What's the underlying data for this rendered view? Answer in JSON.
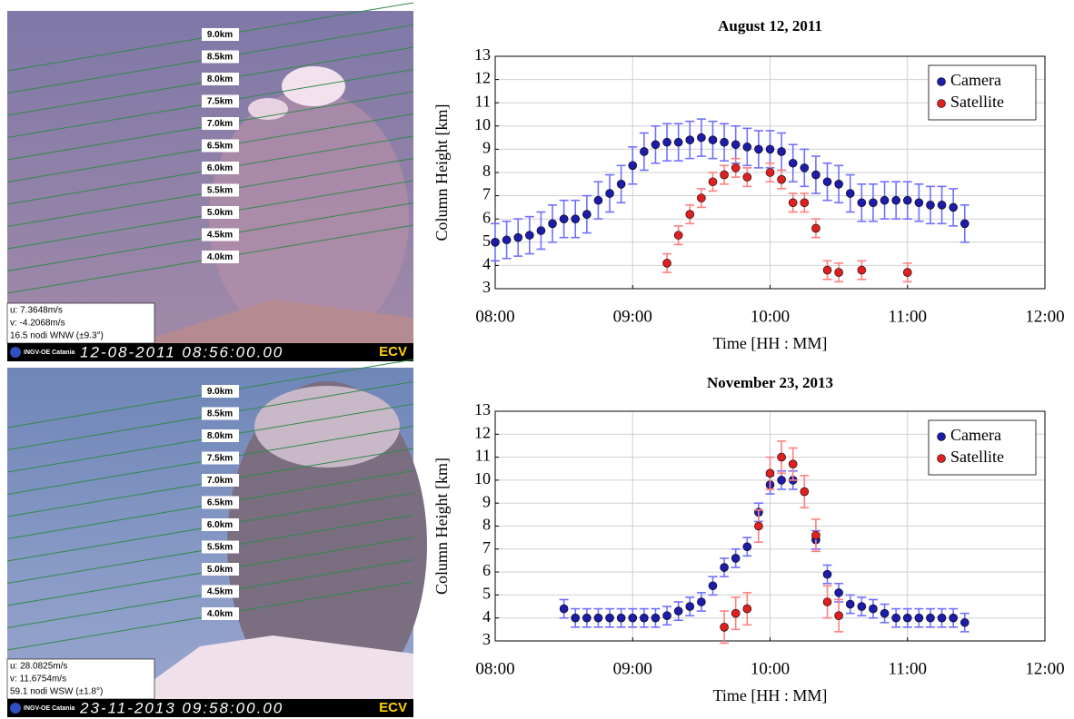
{
  "chart_data": [
    {
      "type": "scatter",
      "title": "August 12, 2011",
      "xlabel": "Time [HH : MM]",
      "ylabel": "Column Height [km]",
      "xlim": [
        480,
        720
      ],
      "xticks": [
        {
          "value": 480,
          "label": "08:00"
        },
        {
          "value": 540,
          "label": "09:00"
        },
        {
          "value": 600,
          "label": "10:00"
        },
        {
          "value": 660,
          "label": "11:00"
        },
        {
          "value": 720,
          "label": "12:00"
        }
      ],
      "ylim": [
        3,
        13
      ],
      "yticks": [
        3,
        4,
        5,
        6,
        7,
        8,
        9,
        10,
        11,
        12,
        13
      ],
      "grid": true,
      "legend": "upper right",
      "series": [
        {
          "name": "Camera",
          "color": "#1c1ca8",
          "error_color": "#7070ff",
          "error": 0.8,
          "x": [
            480,
            485,
            490,
            495,
            500,
            505,
            510,
            515,
            520,
            525,
            530,
            535,
            540,
            545,
            550,
            555,
            560,
            565,
            570,
            575,
            580,
            585,
            590,
            595,
            600,
            605,
            610,
            615,
            620,
            625,
            630,
            635,
            640,
            645,
            650,
            655,
            660,
            665,
            670,
            675,
            680,
            685
          ],
          "values": [
            5.0,
            5.1,
            5.2,
            5.3,
            5.5,
            5.8,
            6.0,
            6.0,
            6.2,
            6.8,
            7.1,
            7.5,
            8.3,
            8.9,
            9.2,
            9.3,
            9.3,
            9.4,
            9.5,
            9.4,
            9.3,
            9.2,
            9.1,
            9.0,
            9.0,
            8.9,
            8.4,
            8.2,
            7.9,
            7.6,
            7.5,
            7.1,
            6.7,
            6.7,
            6.8,
            6.8,
            6.8,
            6.7,
            6.6,
            6.6,
            6.5,
            5.8
          ]
        },
        {
          "name": "Satellite",
          "color": "#e02020",
          "error_color": "#ff8080",
          "error": 0.4,
          "x": [
            555,
            560,
            565,
            570,
            575,
            580,
            585,
            590,
            600,
            605,
            610,
            615,
            620,
            625,
            630,
            640,
            660
          ],
          "values": [
            4.1,
            5.3,
            6.2,
            6.9,
            7.6,
            7.9,
            8.2,
            7.8,
            8.0,
            7.7,
            6.7,
            6.7,
            5.6,
            3.8,
            3.7,
            3.8,
            3.7
          ]
        }
      ]
    },
    {
      "type": "scatter",
      "title": "November 23, 2013",
      "xlabel": "Time [HH : MM]",
      "ylabel": "Column Height [km]",
      "xlim": [
        480,
        720
      ],
      "xticks": [
        {
          "value": 480,
          "label": "08:00"
        },
        {
          "value": 540,
          "label": "09:00"
        },
        {
          "value": 600,
          "label": "10:00"
        },
        {
          "value": 660,
          "label": "11:00"
        },
        {
          "value": 720,
          "label": "12:00"
        }
      ],
      "ylim": [
        3,
        13
      ],
      "yticks": [
        3,
        4,
        5,
        6,
        7,
        8,
        9,
        10,
        11,
        12,
        13
      ],
      "grid": true,
      "legend": "upper right",
      "series": [
        {
          "name": "Camera",
          "color": "#1c1ca8",
          "error_color": "#7070ff",
          "error": 0.4,
          "x": [
            510,
            515,
            520,
            525,
            530,
            535,
            540,
            545,
            550,
            555,
            560,
            565,
            570,
            575,
            580,
            585,
            590,
            595,
            600,
            605,
            610,
            620,
            625,
            630,
            635,
            640,
            645,
            650,
            655,
            660,
            665,
            670,
            675,
            680,
            685
          ],
          "values": [
            4.4,
            4.0,
            4.0,
            4.0,
            4.0,
            4.0,
            4.0,
            4.0,
            4.0,
            4.1,
            4.3,
            4.5,
            4.7,
            5.4,
            6.2,
            6.6,
            7.1,
            8.6,
            9.8,
            10.0,
            10.0,
            7.4,
            5.9,
            5.1,
            4.6,
            4.5,
            4.4,
            4.2,
            4.0,
            4.0,
            4.0,
            4.0,
            4.0,
            4.0,
            3.8
          ]
        },
        {
          "name": "Satellite",
          "color": "#e02020",
          "error_color": "#ff8080",
          "error": 0.7,
          "x": [
            580,
            585,
            590,
            595,
            600,
            605,
            610,
            615,
            620,
            625,
            630
          ],
          "values": [
            3.6,
            4.2,
            4.4,
            8.0,
            10.3,
            11.0,
            10.7,
            9.5,
            7.6,
            4.7,
            4.1
          ]
        }
      ]
    }
  ],
  "images": [
    {
      "altitudes": [
        "9.0km",
        "8.5km",
        "8.0km",
        "7.5km",
        "7.0km",
        "6.5km",
        "6.0km",
        "5.5km",
        "5.0km",
        "4.5km",
        "4.0km"
      ],
      "info": [
        "u: 7.3648m/s",
        "v: -4.2068m/s",
        "16.5 nodi WNW (±9.3°)"
      ],
      "logo": "INGV-OE Catania",
      "timestamp": "12-08-2011 08:56:00.00",
      "station": "ECV"
    },
    {
      "altitudes": [
        "9.0km",
        "8.5km",
        "8.0km",
        "7.5km",
        "7.0km",
        "6.5km",
        "6.0km",
        "5.5km",
        "5.0km",
        "4.5km",
        "4.0km"
      ],
      "info": [
        "u: 28.0825m/s",
        "v: 11.6754m/s",
        "59.1 nodi WSW (±1.8°)"
      ],
      "logo": "INGV-OE Catania",
      "timestamp": "23-11-2013 09:58:00.00",
      "station": "ECV"
    }
  ]
}
